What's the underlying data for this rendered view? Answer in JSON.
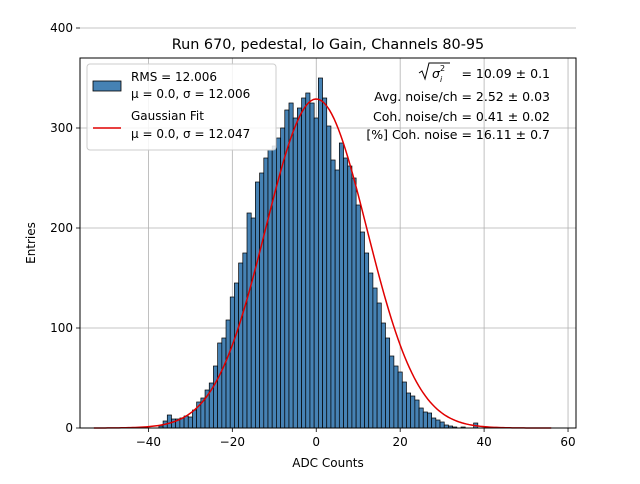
{
  "chart_data": {
    "type": "bar",
    "title": "Run 670, pedestal, lo Gain, Channels 80-95",
    "xlabel": "ADC Counts",
    "ylabel": "Entries",
    "xlim": [
      -56.3,
      61.9
    ],
    "ylim": [
      0,
      370
    ],
    "xticks": [
      -40,
      -20,
      0,
      20,
      40,
      60
    ],
    "yticks": [
      0,
      100,
      200,
      300,
      400
    ],
    "grid": true,
    "bin_width": 1,
    "series": [
      {
        "name": "histogram",
        "x": [
          -37,
          -36,
          -35,
          -34,
          -33,
          -32,
          -31,
          -30,
          -29,
          -28,
          -27,
          -26,
          -25,
          -24,
          -23,
          -22,
          -21,
          -20,
          -19,
          -18,
          -17,
          -16,
          -15,
          -14,
          -13,
          -12,
          -11,
          -10,
          -9,
          -8,
          -7,
          -6,
          -5,
          -4,
          -3,
          -2,
          -1,
          0,
          1,
          2,
          3,
          4,
          5,
          6,
          7,
          8,
          9,
          10,
          11,
          12,
          13,
          14,
          15,
          16,
          17,
          18,
          19,
          20,
          21,
          22,
          23,
          24,
          25,
          26,
          27,
          28,
          29,
          30,
          31,
          32,
          33,
          34,
          35,
          36,
          37,
          38
        ],
        "values": [
          2,
          7,
          13,
          9,
          9,
          10,
          12,
          11,
          18,
          26,
          30,
          38,
          45,
          62,
          85,
          90,
          108,
          131,
          145,
          165,
          175,
          215,
          210,
          246,
          255,
          270,
          278,
          282,
          290,
          300,
          318,
          325,
          310,
          320,
          330,
          335,
          325,
          310,
          350,
          330,
          302,
          268,
          258,
          285,
          270,
          262,
          250,
          223,
          196,
          175,
          155,
          140,
          125,
          105,
          90,
          72,
          62,
          56,
          46,
          35,
          32,
          28,
          20,
          16,
          15,
          10,
          8,
          6,
          3,
          2,
          1,
          0,
          1,
          0,
          0,
          5
        ]
      },
      {
        "name": "gaussian_fit",
        "mu": 0.0,
        "sigma": 12.047,
        "peak": 329,
        "x_range": [
          -53,
          56
        ]
      }
    ],
    "legend": {
      "placement": "top-left",
      "entries": [
        {
          "line1": "RMS = 12.006",
          "line2": "μ = 0.0, σ = 12.006",
          "kind": "patch"
        },
        {
          "line1": "Gaussian Fit",
          "line2": "μ = 0.0, σ = 12.047",
          "kind": "line"
        }
      ]
    },
    "annotations": {
      "sqrt_value": " = 10.09 ± 0.1",
      "line2": "Avg. noise/ch = 2.52 ± 0.03",
      "line3": "Coh. noise/ch = 0.41 ± 0.02",
      "line4": "[%] Coh. noise = 16.11 ± 0.7"
    },
    "colors": {
      "bar_fill": "#4682b4",
      "bar_edge": "#000000",
      "fit_line": "#e00000",
      "grid": "#b0b0b0"
    }
  }
}
